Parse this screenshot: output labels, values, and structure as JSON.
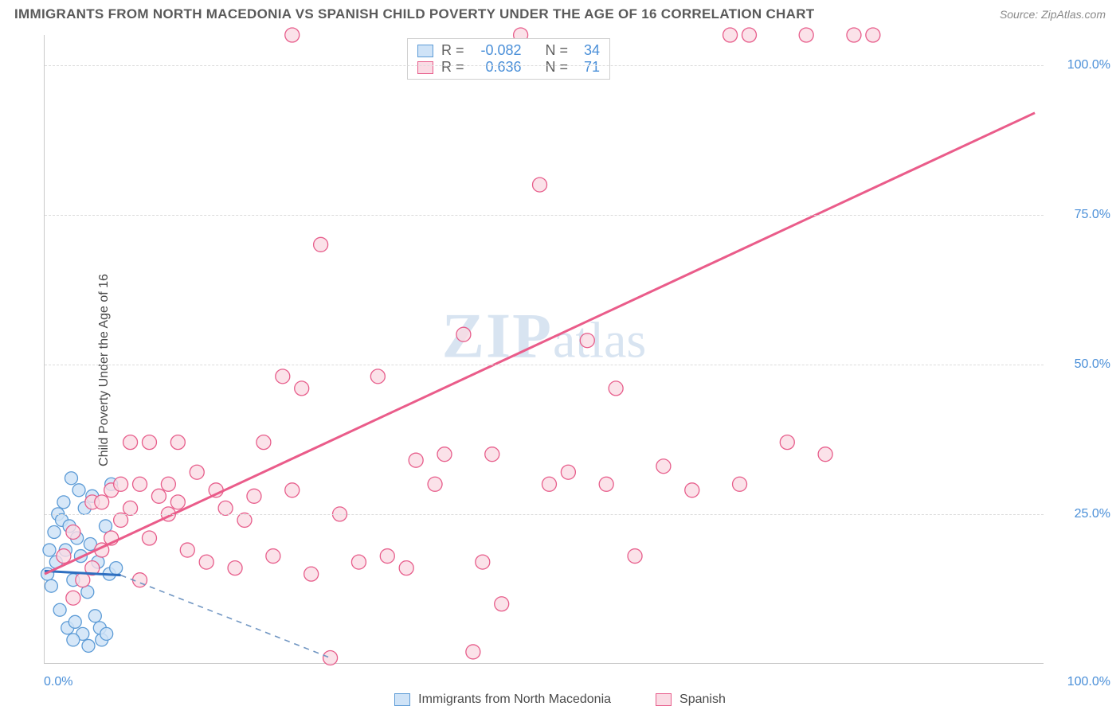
{
  "header": {
    "title": "IMMIGRANTS FROM NORTH MACEDONIA VS SPANISH CHILD POVERTY UNDER THE AGE OF 16 CORRELATION CHART",
    "source_prefix": "Source: ",
    "source": "ZipAtlas.com"
  },
  "ylabel": "Child Poverty Under the Age of 16",
  "watermark": {
    "zip": "ZIP",
    "atlas": "atlas"
  },
  "axes": {
    "xmin": 0,
    "xmax": 105,
    "ymin": 0,
    "ymax": 105,
    "yticks": [
      25,
      50,
      75,
      100
    ],
    "ytick_labels": [
      "25.0%",
      "50.0%",
      "75.0%",
      "100.0%"
    ],
    "xtick_left": "0.0%",
    "xtick_right": "100.0%",
    "grid_color": "#dcdcdc",
    "tick_font_color": "#4a8fd8"
  },
  "series": [
    {
      "name": "Immigrants from North Macedonia",
      "color_fill": "#cfe3f7",
      "color_stroke": "#5c9bd6",
      "marker_radius": 8,
      "marker_opacity": 0.85,
      "trend": {
        "x1": 0,
        "y1": 15.5,
        "x2": 8,
        "y2": 14.8,
        "solid_color": "#2e6fc0",
        "solid_width": 3,
        "dash_x2": 30,
        "dash_y2": 1,
        "dash_color": "#6f95c2",
        "dash_width": 1.6
      },
      "stats": {
        "R": "-0.082",
        "N": "34"
      },
      "points": [
        [
          0.3,
          15
        ],
        [
          0.5,
          19
        ],
        [
          0.7,
          13
        ],
        [
          1.0,
          22
        ],
        [
          1.2,
          17
        ],
        [
          1.4,
          25
        ],
        [
          1.6,
          9
        ],
        [
          1.8,
          24
        ],
        [
          2.0,
          27
        ],
        [
          2.2,
          19
        ],
        [
          2.4,
          6
        ],
        [
          2.6,
          23
        ],
        [
          2.8,
          31
        ],
        [
          3.0,
          14
        ],
        [
          3.2,
          7
        ],
        [
          3.4,
          21
        ],
        [
          3.6,
          29
        ],
        [
          3.8,
          18
        ],
        [
          4.0,
          5
        ],
        [
          4.2,
          26
        ],
        [
          4.5,
          12
        ],
        [
          4.8,
          20
        ],
        [
          5.0,
          28
        ],
        [
          5.3,
          8
        ],
        [
          5.6,
          17
        ],
        [
          6.0,
          4
        ],
        [
          6.4,
          23
        ],
        [
          6.8,
          15
        ],
        [
          7.0,
          30
        ],
        [
          4.6,
          3
        ],
        [
          5.8,
          6
        ],
        [
          6.5,
          5
        ],
        [
          3.0,
          4
        ],
        [
          7.5,
          16
        ]
      ]
    },
    {
      "name": "Spanish",
      "color_fill": "#fadbe4",
      "color_stroke": "#e75d8b",
      "marker_radius": 9,
      "marker_opacity": 0.8,
      "trend": {
        "x1": 0,
        "y1": 15,
        "x2": 104,
        "y2": 92,
        "solid_color": "#ea5c8a",
        "solid_width": 3
      },
      "stats": {
        "R": "0.636",
        "N": "71"
      },
      "points": [
        [
          2,
          18
        ],
        [
          3,
          22
        ],
        [
          4,
          14
        ],
        [
          5,
          27
        ],
        [
          6,
          19
        ],
        [
          7,
          29
        ],
        [
          8,
          24
        ],
        [
          9,
          26
        ],
        [
          10,
          30
        ],
        [
          11,
          21
        ],
        [
          12,
          28
        ],
        [
          13,
          25
        ],
        [
          14,
          27
        ],
        [
          15,
          19
        ],
        [
          16,
          32
        ],
        [
          17,
          17
        ],
        [
          18,
          29
        ],
        [
          19,
          26
        ],
        [
          20,
          16
        ],
        [
          21,
          24
        ],
        [
          22,
          28
        ],
        [
          23,
          37
        ],
        [
          24,
          18
        ],
        [
          11,
          37
        ],
        [
          14,
          37
        ],
        [
          25,
          48
        ],
        [
          26,
          105
        ],
        [
          27,
          46
        ],
        [
          28,
          15
        ],
        [
          29,
          70
        ],
        [
          30,
          1
        ],
        [
          31,
          25
        ],
        [
          33,
          17
        ],
        [
          35,
          48
        ],
        [
          36,
          18
        ],
        [
          39,
          34
        ],
        [
          41,
          30
        ],
        [
          45,
          2
        ],
        [
          44,
          55
        ],
        [
          47,
          35
        ],
        [
          48,
          10
        ],
        [
          50,
          105
        ],
        [
          52,
          80
        ],
        [
          55,
          32
        ],
        [
          57,
          54
        ],
        [
          59,
          30
        ],
        [
          60,
          46
        ],
        [
          62,
          18
        ],
        [
          65,
          33
        ],
        [
          68,
          29
        ],
        [
          72,
          105
        ],
        [
          74,
          105
        ],
        [
          78,
          37
        ],
        [
          80,
          105
        ],
        [
          82,
          35
        ],
        [
          85,
          105
        ],
        [
          87,
          105
        ],
        [
          73,
          30
        ],
        [
          46,
          17
        ],
        [
          38,
          16
        ],
        [
          42,
          35
        ],
        [
          53,
          30
        ],
        [
          26,
          29
        ],
        [
          9,
          37
        ],
        [
          13,
          30
        ],
        [
          10,
          14
        ],
        [
          6,
          27
        ],
        [
          8,
          30
        ],
        [
          5,
          16
        ],
        [
          3,
          11
        ],
        [
          7,
          21
        ]
      ]
    }
  ],
  "legend_bottom": [
    {
      "label": "Immigrants from North Macedonia",
      "fill": "#cfe3f7",
      "stroke": "#5c9bd6"
    },
    {
      "label": "Spanish",
      "fill": "#fadbe4",
      "stroke": "#e75d8b"
    }
  ],
  "statbox_labels": {
    "R": "R =",
    "N": "N ="
  }
}
